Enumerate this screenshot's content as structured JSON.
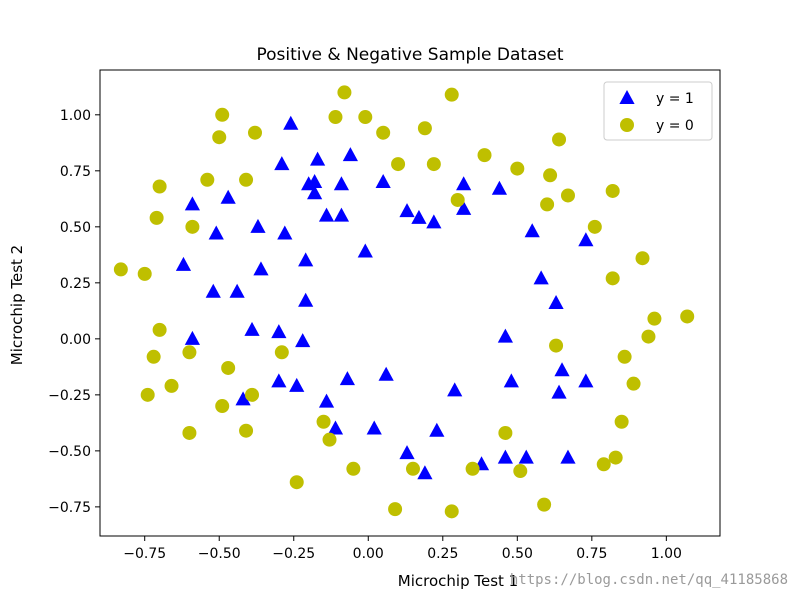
{
  "chart_data": {
    "type": "scatter",
    "title": "Positive & Negative Sample Dataset",
    "xlabel": "Microchip Test 1",
    "ylabel": "Microchip Test 2",
    "xlim": [
      -0.9,
      1.18
    ],
    "ylim": [
      -0.88,
      1.2
    ],
    "xticks": [
      -0.75,
      -0.5,
      -0.25,
      0.0,
      0.25,
      0.5,
      0.75,
      1.0
    ],
    "xtick_labels": [
      "−0.75",
      "−0.50",
      "−0.25",
      "0.00",
      "0.25",
      "0.50",
      "0.75",
      "1.00"
    ],
    "yticks": [
      -0.75,
      -0.5,
      -0.25,
      0.0,
      0.25,
      0.5,
      0.75,
      1.0
    ],
    "ytick_labels": [
      "−0.75",
      "−0.50",
      "−0.25",
      "0.00",
      "0.25",
      "0.50",
      "0.75",
      "1.00"
    ],
    "grid": false,
    "legend_position": "top-right",
    "series": [
      {
        "name": "y = 1",
        "marker": "triangle",
        "color": "#0000ff",
        "points": [
          [
            -0.26,
            0.96
          ],
          [
            -0.17,
            0.8
          ],
          [
            -0.06,
            0.82
          ],
          [
            -0.29,
            0.78
          ],
          [
            -0.18,
            0.7
          ],
          [
            -0.2,
            0.69
          ],
          [
            -0.09,
            0.69
          ],
          [
            0.05,
            0.7
          ],
          [
            0.32,
            0.69
          ],
          [
            0.44,
            0.67
          ],
          [
            -0.18,
            0.65
          ],
          [
            -0.47,
            0.63
          ],
          [
            -0.59,
            0.6
          ],
          [
            0.13,
            0.57
          ],
          [
            0.32,
            0.58
          ],
          [
            -0.09,
            0.55
          ],
          [
            -0.14,
            0.55
          ],
          [
            0.17,
            0.54
          ],
          [
            0.22,
            0.52
          ],
          [
            -0.37,
            0.5
          ],
          [
            -0.28,
            0.47
          ],
          [
            -0.51,
            0.47
          ],
          [
            0.55,
            0.48
          ],
          [
            0.73,
            0.44
          ],
          [
            -0.01,
            0.39
          ],
          [
            -0.21,
            0.35
          ],
          [
            -0.62,
            0.33
          ],
          [
            -0.36,
            0.31
          ],
          [
            0.58,
            0.27
          ],
          [
            -0.52,
            0.21
          ],
          [
            -0.44,
            0.21
          ],
          [
            -0.21,
            0.17
          ],
          [
            0.63,
            0.16
          ],
          [
            -0.39,
            0.04
          ],
          [
            -0.3,
            0.03
          ],
          [
            -0.59,
            0.0
          ],
          [
            0.46,
            0.01
          ],
          [
            -0.22,
            -0.01
          ],
          [
            0.65,
            -0.14
          ],
          [
            0.06,
            -0.16
          ],
          [
            -0.07,
            -0.18
          ],
          [
            -0.3,
            -0.19
          ],
          [
            -0.24,
            -0.21
          ],
          [
            0.48,
            -0.19
          ],
          [
            0.73,
            -0.19
          ],
          [
            0.29,
            -0.23
          ],
          [
            0.64,
            -0.24
          ],
          [
            -0.42,
            -0.27
          ],
          [
            -0.14,
            -0.28
          ],
          [
            -0.11,
            -0.4
          ],
          [
            0.02,
            -0.4
          ],
          [
            0.23,
            -0.41
          ],
          [
            0.13,
            -0.51
          ],
          [
            0.46,
            -0.53
          ],
          [
            0.53,
            -0.53
          ],
          [
            0.38,
            -0.56
          ],
          [
            0.19,
            -0.6
          ],
          [
            0.67,
            -0.53
          ]
        ]
      },
      {
        "name": "y = 0",
        "marker": "circle",
        "color": "#bfbf00",
        "points": [
          [
            -0.08,
            1.1
          ],
          [
            0.28,
            1.09
          ],
          [
            -0.49,
            1.0
          ],
          [
            -0.11,
            0.99
          ],
          [
            -0.01,
            0.99
          ],
          [
            -0.5,
            0.9
          ],
          [
            -0.38,
            0.92
          ],
          [
            0.05,
            0.92
          ],
          [
            0.19,
            0.94
          ],
          [
            0.64,
            0.89
          ],
          [
            0.39,
            0.82
          ],
          [
            0.1,
            0.78
          ],
          [
            0.22,
            0.78
          ],
          [
            0.5,
            0.76
          ],
          [
            0.61,
            0.73
          ],
          [
            -0.54,
            0.71
          ],
          [
            -0.7,
            0.68
          ],
          [
            -0.41,
            0.71
          ],
          [
            0.82,
            0.66
          ],
          [
            0.67,
            0.64
          ],
          [
            0.3,
            0.62
          ],
          [
            0.6,
            0.6
          ],
          [
            -0.71,
            0.54
          ],
          [
            -0.59,
            0.5
          ],
          [
            0.76,
            0.5
          ],
          [
            0.92,
            0.36
          ],
          [
            -0.83,
            0.31
          ],
          [
            -0.75,
            0.29
          ],
          [
            0.82,
            0.27
          ],
          [
            0.96,
            0.09
          ],
          [
            1.07,
            0.1
          ],
          [
            -0.7,
            0.04
          ],
          [
            0.94,
            0.01
          ],
          [
            0.63,
            -0.03
          ],
          [
            -0.6,
            -0.06
          ],
          [
            -0.29,
            -0.06
          ],
          [
            -0.72,
            -0.08
          ],
          [
            0.86,
            -0.08
          ],
          [
            -0.47,
            -0.13
          ],
          [
            -0.66,
            -0.21
          ],
          [
            0.89,
            -0.2
          ],
          [
            -0.74,
            -0.25
          ],
          [
            -0.39,
            -0.25
          ],
          [
            -0.49,
            -0.3
          ],
          [
            0.85,
            -0.37
          ],
          [
            -0.15,
            -0.37
          ],
          [
            0.46,
            -0.42
          ],
          [
            -0.6,
            -0.42
          ],
          [
            -0.41,
            -0.41
          ],
          [
            -0.13,
            -0.45
          ],
          [
            0.83,
            -0.53
          ],
          [
            0.79,
            -0.56
          ],
          [
            -0.05,
            -0.58
          ],
          [
            0.15,
            -0.58
          ],
          [
            0.35,
            -0.58
          ],
          [
            0.51,
            -0.59
          ],
          [
            -0.24,
            -0.64
          ],
          [
            0.09,
            -0.76
          ],
          [
            0.28,
            -0.77
          ],
          [
            0.59,
            -0.74
          ]
        ]
      }
    ]
  },
  "watermark": "https://blog.csdn.net/qq_41185868"
}
